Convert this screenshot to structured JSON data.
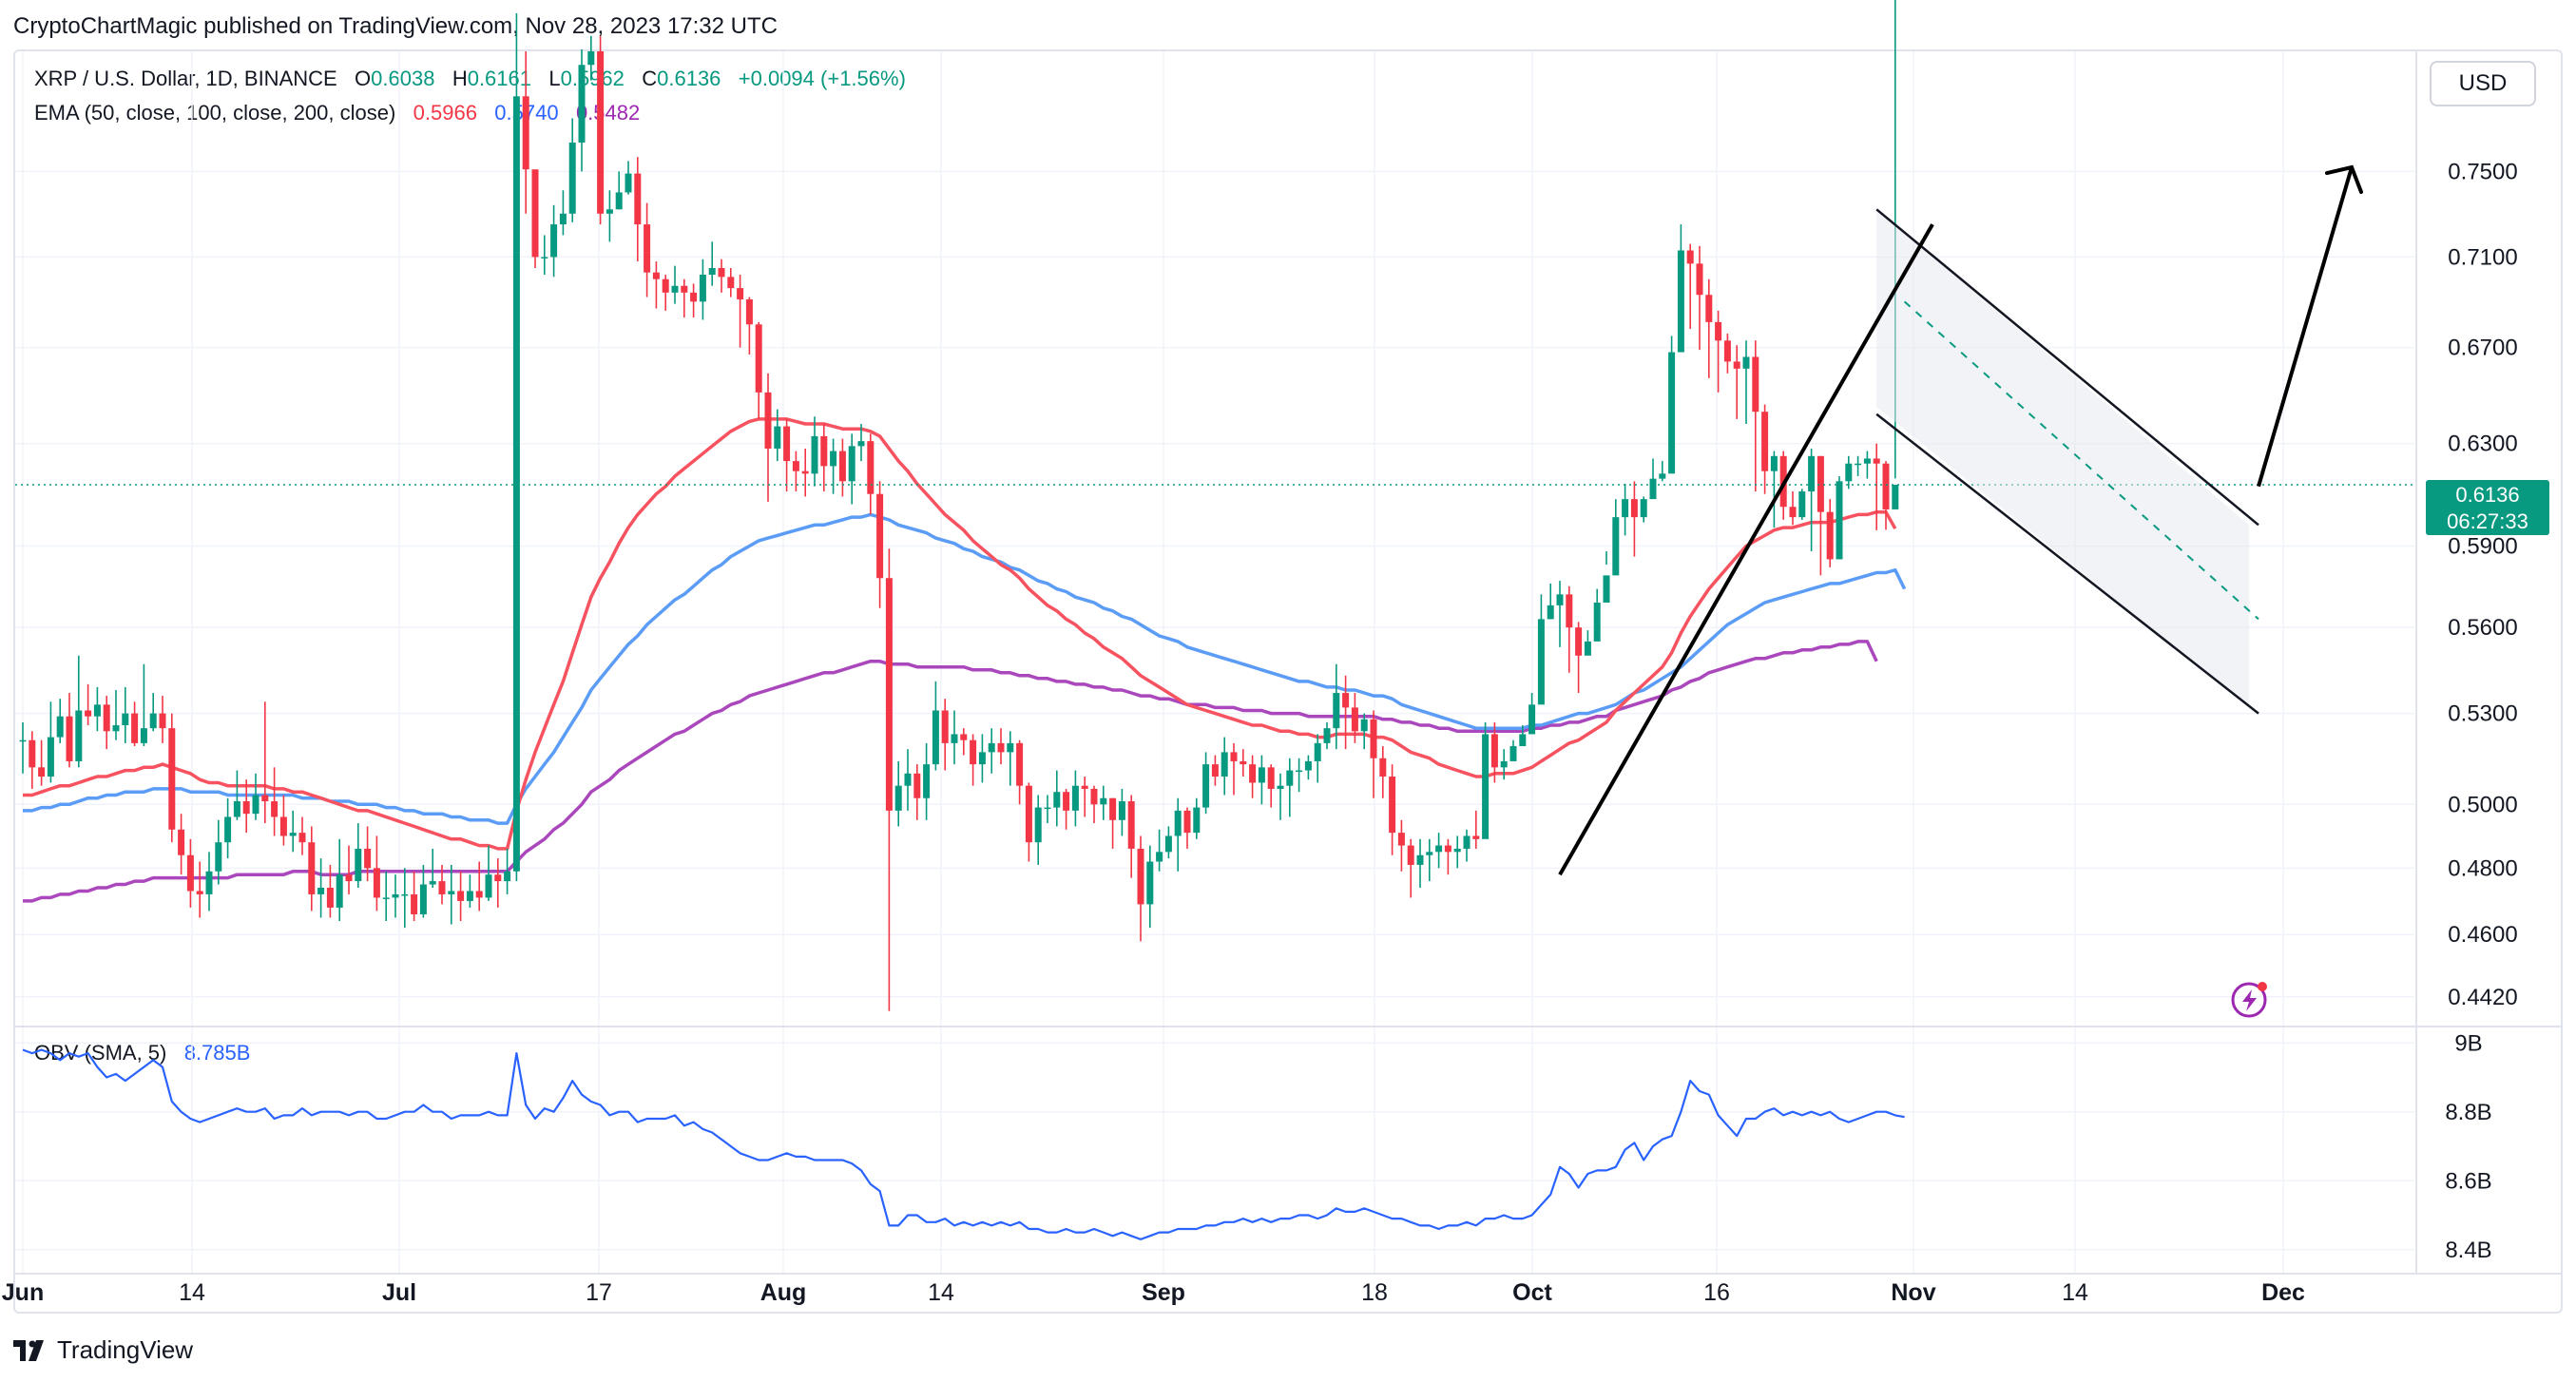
{
  "header": {
    "published": "CryptoChartMagic published on TradingView.com, Nov 28, 2023 17:32 UTC"
  },
  "toolbar": {
    "currency": "USD"
  },
  "legend": {
    "symbol": "XRP / U.S. Dollar, 1D, BINANCE",
    "o_label": "O",
    "o": "0.6038",
    "h_label": "H",
    "h": "0.6161",
    "l_label": "L",
    "l": "0.5962",
    "c_label": "C",
    "c": "0.6136",
    "change": "+0.0094 (+1.56%)",
    "ema_label": "EMA (50, close, 100, close, 200, close)",
    "ema50": "0.5966",
    "ema100": "0.5740",
    "ema200": "0.5482",
    "obv_label": "OBV (SMA, 5)",
    "obv_value": "8.785B"
  },
  "price_badge": {
    "price": "0.6136",
    "countdown": "06:27:33"
  },
  "brand": {
    "name": "TradingView"
  },
  "colors": {
    "up": "#089981",
    "down": "#f23645",
    "ema50": "#f7525f",
    "ema100": "#5b9cf6",
    "ema200": "#ab47bc",
    "obv": "#2962ff"
  },
  "chart_data": {
    "type": "candlestick",
    "title": "XRP / U.S. Dollar, 1D, BINANCE",
    "x_ticks": [
      "Jun",
      "14",
      "Jul",
      "17",
      "Aug",
      "14",
      "Sep",
      "18",
      "Oct",
      "16",
      "Nov",
      "14",
      "Dec"
    ],
    "price_axis": {
      "ticks": [
        "0.7500",
        "0.7100",
        "0.6700",
        "0.6300",
        "0.5900",
        "0.5600",
        "0.5300",
        "0.5000",
        "0.4800",
        "0.4600",
        "0.4420"
      ],
      "scale": "log",
      "range": [
        0.435,
        0.81
      ]
    },
    "obv_axis": {
      "ticks": [
        "9B",
        "8.8B",
        "8.6B",
        "8.4B"
      ],
      "range": [
        8.38,
        9.02
      ]
    },
    "dates": [
      "2023-06-01",
      "2023-11-28"
    ],
    "close": [
      0.521,
      0.512,
      0.509,
      0.522,
      0.529,
      0.514,
      0.531,
      0.529,
      0.533,
      0.524,
      0.526,
      0.53,
      0.52,
      0.525,
      0.53,
      0.525,
      0.492,
      0.484,
      0.473,
      0.472,
      0.479,
      0.488,
      0.496,
      0.501,
      0.497,
      0.503,
      0.501,
      0.496,
      0.49,
      0.491,
      0.488,
      0.472,
      0.474,
      0.468,
      0.478,
      0.476,
      0.486,
      0.48,
      0.471,
      0.471,
      0.472,
      0.472,
      0.466,
      0.475,
      0.476,
      0.472,
      0.473,
      0.47,
      0.473,
      0.471,
      0.478,
      0.476,
      0.479,
      0.787,
      0.751,
      0.71,
      0.71,
      0.725,
      0.73,
      0.764,
      0.803,
      0.81,
      0.73,
      0.732,
      0.74,
      0.749,
      0.725,
      0.703,
      0.7,
      0.694,
      0.697,
      0.694,
      0.69,
      0.702,
      0.705,
      0.701,
      0.696,
      0.691,
      0.68,
      0.651,
      0.628,
      0.637,
      0.623,
      0.619,
      0.618,
      0.633,
      0.621,
      0.627,
      0.615,
      0.629,
      0.631,
      0.61,
      0.578,
      0.498,
      0.506,
      0.51,
      0.502,
      0.513,
      0.531,
      0.52,
      0.523,
      0.521,
      0.513,
      0.517,
      0.52,
      0.517,
      0.52,
      0.506,
      0.488,
      0.499,
      0.499,
      0.504,
      0.498,
      0.506,
      0.505,
      0.5,
      0.502,
      0.495,
      0.501,
      0.486,
      0.469,
      0.482,
      0.485,
      0.49,
      0.498,
      0.491,
      0.499,
      0.513,
      0.509,
      0.517,
      0.514,
      0.513,
      0.507,
      0.512,
      0.505,
      0.506,
      0.511,
      0.511,
      0.514,
      0.52,
      0.525,
      0.537,
      0.532,
      0.524,
      0.528,
      0.515,
      0.509,
      0.491,
      0.487,
      0.481,
      0.484,
      0.485,
      0.487,
      0.485,
      0.486,
      0.49,
      0.489,
      0.523,
      0.512,
      0.514,
      0.519,
      0.523,
      0.533,
      0.563,
      0.568,
      0.572,
      0.56,
      0.55,
      0.555,
      0.569,
      0.579,
      0.601,
      0.608,
      0.601,
      0.608,
      0.616,
      0.618,
      0.668,
      0.713,
      0.707,
      0.693,
      0.681,
      0.673,
      0.664,
      0.661,
      0.666,
      0.643,
      0.619,
      0.625,
      0.605,
      0.601,
      0.611,
      0.625,
      0.603,
      0.585,
      0.615,
      0.622,
      0.622,
      0.624,
      0.622,
      0.604,
      0.6136
    ],
    "high": [
      0.527,
      0.524,
      0.521,
      0.534,
      0.535,
      0.537,
      0.55,
      0.54,
      0.539,
      0.536,
      0.538,
      0.539,
      0.534,
      0.547,
      0.537,
      0.536,
      0.53,
      0.497,
      0.489,
      0.482,
      0.485,
      0.495,
      0.502,
      0.511,
      0.508,
      0.51,
      0.534,
      0.512,
      0.503,
      0.498,
      0.496,
      0.493,
      0.483,
      0.481,
      0.489,
      0.487,
      0.494,
      0.493,
      0.49,
      0.479,
      0.478,
      0.48,
      0.479,
      0.481,
      0.486,
      0.481,
      0.481,
      0.479,
      0.478,
      0.482,
      0.487,
      0.483,
      0.486,
      0.83,
      0.81,
      0.75,
      0.72,
      0.734,
      0.741,
      0.776,
      0.811,
      0.818,
      0.818,
      0.741,
      0.75,
      0.755,
      0.757,
      0.735,
      0.708,
      0.702,
      0.706,
      0.7,
      0.698,
      0.709,
      0.717,
      0.709,
      0.705,
      0.702,
      0.692,
      0.681,
      0.659,
      0.644,
      0.64,
      0.627,
      0.628,
      0.641,
      0.638,
      0.632,
      0.632,
      0.634,
      0.638,
      0.634,
      0.615,
      0.589,
      0.514,
      0.518,
      0.513,
      0.52,
      0.541,
      0.535,
      0.531,
      0.525,
      0.523,
      0.523,
      0.525,
      0.525,
      0.524,
      0.521,
      0.507,
      0.503,
      0.503,
      0.511,
      0.505,
      0.511,
      0.509,
      0.506,
      0.506,
      0.502,
      0.505,
      0.503,
      0.49,
      0.487,
      0.492,
      0.493,
      0.502,
      0.499,
      0.502,
      0.517,
      0.516,
      0.522,
      0.52,
      0.518,
      0.516,
      0.516,
      0.513,
      0.51,
      0.515,
      0.515,
      0.516,
      0.523,
      0.527,
      0.547,
      0.543,
      0.537,
      0.53,
      0.531,
      0.519,
      0.513,
      0.495,
      0.489,
      0.489,
      0.489,
      0.491,
      0.489,
      0.49,
      0.492,
      0.498,
      0.527,
      0.527,
      0.518,
      0.521,
      0.526,
      0.537,
      0.572,
      0.576,
      0.577,
      0.575,
      0.562,
      0.559,
      0.574,
      0.583,
      0.608,
      0.614,
      0.615,
      0.609,
      0.624,
      0.623,
      0.675,
      0.725,
      0.716,
      0.715,
      0.7,
      0.686,
      0.676,
      0.671,
      0.673,
      0.673,
      0.646,
      0.627,
      0.627,
      0.611,
      0.612,
      0.628,
      0.625,
      0.608,
      0.617,
      0.625,
      0.625,
      0.627,
      0.63,
      0.623,
      0.6161
    ],
    "low": [
      0.51,
      0.505,
      0.506,
      0.507,
      0.52,
      0.512,
      0.512,
      0.526,
      0.524,
      0.518,
      0.521,
      0.52,
      0.519,
      0.519,
      0.524,
      0.52,
      0.488,
      0.478,
      0.468,
      0.465,
      0.467,
      0.475,
      0.483,
      0.495,
      0.491,
      0.495,
      0.494,
      0.49,
      0.487,
      0.485,
      0.484,
      0.467,
      0.465,
      0.465,
      0.464,
      0.472,
      0.474,
      0.476,
      0.467,
      0.464,
      0.465,
      0.462,
      0.464,
      0.465,
      0.474,
      0.469,
      0.463,
      0.464,
      0.468,
      0.467,
      0.47,
      0.468,
      0.472,
      0.476,
      0.73,
      0.705,
      0.702,
      0.701,
      0.72,
      0.726,
      0.75,
      0.795,
      0.725,
      0.717,
      0.732,
      0.739,
      0.708,
      0.692,
      0.687,
      0.686,
      0.689,
      0.683,
      0.683,
      0.682,
      0.697,
      0.694,
      0.692,
      0.67,
      0.667,
      0.64,
      0.607,
      0.623,
      0.611,
      0.611,
      0.609,
      0.613,
      0.611,
      0.61,
      0.609,
      0.606,
      0.623,
      0.602,
      0.567,
      0.438,
      0.493,
      0.498,
      0.495,
      0.495,
      0.511,
      0.511,
      0.513,
      0.516,
      0.506,
      0.507,
      0.51,
      0.513,
      0.506,
      0.5,
      0.482,
      0.481,
      0.494,
      0.493,
      0.492,
      0.493,
      0.496,
      0.494,
      0.495,
      0.486,
      0.49,
      0.477,
      0.458,
      0.462,
      0.479,
      0.483,
      0.479,
      0.486,
      0.489,
      0.497,
      0.506,
      0.503,
      0.503,
      0.509,
      0.502,
      0.5,
      0.499,
      0.495,
      0.496,
      0.504,
      0.508,
      0.507,
      0.518,
      0.518,
      0.518,
      0.52,
      0.518,
      0.502,
      0.502,
      0.484,
      0.479,
      0.471,
      0.474,
      0.476,
      0.48,
      0.478,
      0.48,
      0.482,
      0.486,
      0.508,
      0.507,
      0.508,
      0.518,
      0.523,
      0.529,
      0.559,
      0.563,
      0.553,
      0.544,
      0.537,
      0.555,
      0.569,
      0.588,
      0.6,
      0.594,
      0.586,
      0.599,
      0.61,
      0.615,
      0.663,
      0.688,
      0.678,
      0.669,
      0.657,
      0.651,
      0.659,
      0.64,
      0.638,
      0.611,
      0.61,
      0.597,
      0.6,
      0.598,
      0.6,
      0.588,
      0.579,
      0.582,
      0.603,
      0.612,
      0.617,
      0.616,
      0.596,
      0.5962
    ],
    "ema50": [
      0.503,
      0.503,
      0.504,
      0.505,
      0.506,
      0.506,
      0.507,
      0.508,
      0.509,
      0.509,
      0.51,
      0.511,
      0.511,
      0.512,
      0.512,
      0.513,
      0.512,
      0.511,
      0.51,
      0.508,
      0.507,
      0.507,
      0.506,
      0.506,
      0.506,
      0.506,
      0.506,
      0.505,
      0.505,
      0.504,
      0.504,
      0.503,
      0.502,
      0.501,
      0.5,
      0.499,
      0.498,
      0.498,
      0.497,
      0.496,
      0.495,
      0.494,
      0.493,
      0.492,
      0.491,
      0.49,
      0.489,
      0.489,
      0.488,
      0.487,
      0.487,
      0.486,
      0.486,
      0.498,
      0.508,
      0.517,
      0.525,
      0.533,
      0.541,
      0.551,
      0.561,
      0.571,
      0.578,
      0.584,
      0.591,
      0.597,
      0.602,
      0.606,
      0.61,
      0.613,
      0.617,
      0.62,
      0.623,
      0.626,
      0.629,
      0.632,
      0.635,
      0.637,
      0.639,
      0.64,
      0.64,
      0.64,
      0.64,
      0.639,
      0.638,
      0.638,
      0.638,
      0.637,
      0.636,
      0.636,
      0.636,
      0.635,
      0.633,
      0.628,
      0.623,
      0.619,
      0.614,
      0.61,
      0.606,
      0.602,
      0.599,
      0.596,
      0.592,
      0.589,
      0.586,
      0.583,
      0.581,
      0.578,
      0.574,
      0.571,
      0.568,
      0.566,
      0.563,
      0.561,
      0.558,
      0.556,
      0.553,
      0.551,
      0.549,
      0.546,
      0.543,
      0.541,
      0.539,
      0.537,
      0.535,
      0.533,
      0.532,
      0.531,
      0.53,
      0.529,
      0.528,
      0.527,
      0.526,
      0.526,
      0.525,
      0.524,
      0.524,
      0.523,
      0.523,
      0.522,
      0.522,
      0.523,
      0.523,
      0.523,
      0.523,
      0.522,
      0.522,
      0.521,
      0.519,
      0.517,
      0.516,
      0.515,
      0.513,
      0.512,
      0.511,
      0.51,
      0.509,
      0.509,
      0.51,
      0.51,
      0.51,
      0.511,
      0.512,
      0.514,
      0.516,
      0.518,
      0.52,
      0.521,
      0.523,
      0.525,
      0.527,
      0.531,
      0.534,
      0.537,
      0.54,
      0.543,
      0.546,
      0.551,
      0.558,
      0.564,
      0.569,
      0.574,
      0.578,
      0.582,
      0.586,
      0.59,
      0.592,
      0.594,
      0.596,
      0.597,
      0.597,
      0.598,
      0.599,
      0.599,
      0.599,
      0.6,
      0.601,
      0.602,
      0.602,
      0.603,
      0.603,
      0.5966
    ],
    "ema100": [
      0.498,
      0.498,
      0.499,
      0.499,
      0.5,
      0.5,
      0.501,
      0.502,
      0.502,
      0.503,
      0.503,
      0.504,
      0.504,
      0.504,
      0.505,
      0.505,
      0.505,
      0.505,
      0.504,
      0.504,
      0.504,
      0.504,
      0.503,
      0.503,
      0.503,
      0.503,
      0.503,
      0.503,
      0.503,
      0.503,
      0.502,
      0.502,
      0.502,
      0.501,
      0.501,
      0.501,
      0.5,
      0.5,
      0.5,
      0.499,
      0.499,
      0.498,
      0.498,
      0.497,
      0.497,
      0.497,
      0.496,
      0.496,
      0.495,
      0.495,
      0.495,
      0.494,
      0.494,
      0.5,
      0.505,
      0.509,
      0.513,
      0.517,
      0.522,
      0.527,
      0.532,
      0.538,
      0.542,
      0.546,
      0.55,
      0.554,
      0.557,
      0.561,
      0.564,
      0.567,
      0.57,
      0.572,
      0.575,
      0.578,
      0.581,
      0.583,
      0.586,
      0.588,
      0.59,
      0.592,
      0.593,
      0.594,
      0.595,
      0.596,
      0.597,
      0.598,
      0.598,
      0.599,
      0.6,
      0.601,
      0.601,
      0.602,
      0.601,
      0.6,
      0.598,
      0.597,
      0.596,
      0.595,
      0.593,
      0.592,
      0.591,
      0.589,
      0.588,
      0.586,
      0.585,
      0.584,
      0.582,
      0.581,
      0.579,
      0.577,
      0.576,
      0.574,
      0.573,
      0.571,
      0.57,
      0.569,
      0.567,
      0.566,
      0.564,
      0.563,
      0.561,
      0.559,
      0.557,
      0.556,
      0.555,
      0.553,
      0.552,
      0.551,
      0.55,
      0.549,
      0.548,
      0.547,
      0.546,
      0.545,
      0.544,
      0.543,
      0.542,
      0.541,
      0.541,
      0.54,
      0.539,
      0.539,
      0.538,
      0.538,
      0.537,
      0.536,
      0.536,
      0.535,
      0.533,
      0.532,
      0.531,
      0.53,
      0.529,
      0.528,
      0.527,
      0.526,
      0.525,
      0.525,
      0.525,
      0.525,
      0.525,
      0.525,
      0.526,
      0.526,
      0.527,
      0.528,
      0.529,
      0.53,
      0.53,
      0.531,
      0.532,
      0.533,
      0.535,
      0.537,
      0.538,
      0.54,
      0.542,
      0.544,
      0.546,
      0.549,
      0.552,
      0.555,
      0.558,
      0.561,
      0.563,
      0.565,
      0.567,
      0.569,
      0.57,
      0.571,
      0.572,
      0.573,
      0.574,
      0.575,
      0.576,
      0.576,
      0.577,
      0.578,
      0.579,
      0.58,
      0.58,
      0.581,
      0.574
    ],
    "ema200": [
      0.47,
      0.47,
      0.471,
      0.471,
      0.472,
      0.472,
      0.473,
      0.473,
      0.474,
      0.474,
      0.475,
      0.475,
      0.476,
      0.476,
      0.477,
      0.477,
      0.477,
      0.477,
      0.477,
      0.477,
      0.477,
      0.477,
      0.477,
      0.478,
      0.478,
      0.478,
      0.478,
      0.478,
      0.478,
      0.479,
      0.479,
      0.479,
      0.478,
      0.478,
      0.478,
      0.478,
      0.479,
      0.479,
      0.479,
      0.479,
      0.479,
      0.479,
      0.479,
      0.479,
      0.479,
      0.479,
      0.479,
      0.479,
      0.479,
      0.479,
      0.479,
      0.479,
      0.479,
      0.482,
      0.485,
      0.487,
      0.489,
      0.492,
      0.494,
      0.497,
      0.5,
      0.504,
      0.506,
      0.508,
      0.511,
      0.513,
      0.515,
      0.517,
      0.519,
      0.521,
      0.523,
      0.524,
      0.526,
      0.528,
      0.53,
      0.531,
      0.533,
      0.534,
      0.536,
      0.537,
      0.538,
      0.539,
      0.54,
      0.541,
      0.542,
      0.543,
      0.544,
      0.544,
      0.545,
      0.546,
      0.547,
      0.548,
      0.548,
      0.547,
      0.547,
      0.547,
      0.546,
      0.546,
      0.546,
      0.546,
      0.546,
      0.546,
      0.545,
      0.545,
      0.545,
      0.544,
      0.544,
      0.543,
      0.543,
      0.542,
      0.542,
      0.541,
      0.541,
      0.54,
      0.54,
      0.539,
      0.539,
      0.538,
      0.538,
      0.537,
      0.536,
      0.536,
      0.535,
      0.535,
      0.534,
      0.533,
      0.533,
      0.533,
      0.532,
      0.532,
      0.532,
      0.531,
      0.531,
      0.531,
      0.53,
      0.53,
      0.53,
      0.53,
      0.529,
      0.529,
      0.529,
      0.529,
      0.529,
      0.529,
      0.529,
      0.529,
      0.528,
      0.528,
      0.527,
      0.527,
      0.526,
      0.526,
      0.525,
      0.525,
      0.524,
      0.524,
      0.524,
      0.524,
      0.524,
      0.524,
      0.524,
      0.524,
      0.525,
      0.525,
      0.526,
      0.526,
      0.527,
      0.527,
      0.528,
      0.529,
      0.529,
      0.531,
      0.532,
      0.533,
      0.534,
      0.535,
      0.536,
      0.538,
      0.539,
      0.541,
      0.542,
      0.544,
      0.545,
      0.546,
      0.547,
      0.548,
      0.549,
      0.549,
      0.55,
      0.551,
      0.551,
      0.552,
      0.552,
      0.553,
      0.553,
      0.554,
      0.554,
      0.555,
      0.555,
      0.548
    ],
    "obv": [
      8.98,
      8.97,
      8.98,
      8.97,
      8.95,
      8.97,
      8.96,
      8.97,
      8.93,
      8.9,
      8.91,
      8.89,
      8.91,
      8.93,
      8.95,
      8.93,
      8.83,
      8.8,
      8.78,
      8.77,
      8.78,
      8.79,
      8.8,
      8.81,
      8.8,
      8.8,
      8.81,
      8.78,
      8.79,
      8.79,
      8.81,
      8.79,
      8.8,
      8.8,
      8.8,
      8.79,
      8.8,
      8.8,
      8.78,
      8.78,
      8.79,
      8.8,
      8.8,
      8.82,
      8.8,
      8.8,
      8.78,
      8.79,
      8.79,
      8.79,
      8.8,
      8.79,
      8.79,
      8.97,
      8.82,
      8.78,
      8.81,
      8.8,
      8.84,
      8.89,
      8.85,
      8.83,
      8.82,
      8.79,
      8.8,
      8.8,
      8.77,
      8.78,
      8.78,
      8.78,
      8.79,
      8.76,
      8.77,
      8.75,
      8.74,
      8.72,
      8.7,
      8.68,
      8.67,
      8.66,
      8.66,
      8.67,
      8.68,
      8.67,
      8.67,
      8.66,
      8.66,
      8.66,
      8.66,
      8.65,
      8.63,
      8.59,
      8.57,
      8.47,
      8.47,
      8.5,
      8.5,
      8.48,
      8.48,
      8.49,
      8.47,
      8.48,
      8.47,
      8.48,
      8.47,
      8.48,
      8.47,
      8.48,
      8.46,
      8.46,
      8.45,
      8.45,
      8.46,
      8.45,
      8.45,
      8.46,
      8.45,
      8.44,
      8.45,
      8.44,
      8.43,
      8.44,
      8.45,
      8.45,
      8.46,
      8.46,
      8.46,
      8.47,
      8.47,
      8.48,
      8.48,
      8.49,
      8.48,
      8.49,
      8.48,
      8.49,
      8.49,
      8.5,
      8.5,
      8.49,
      8.5,
      8.52,
      8.51,
      8.51,
      8.52,
      8.51,
      8.5,
      8.49,
      8.49,
      8.48,
      8.47,
      8.47,
      8.46,
      8.47,
      8.47,
      8.48,
      8.47,
      8.49,
      8.49,
      8.5,
      8.49,
      8.49,
      8.5,
      8.53,
      8.56,
      8.64,
      8.62,
      8.58,
      8.62,
      8.63,
      8.63,
      8.64,
      8.69,
      8.71,
      8.66,
      8.7,
      8.72,
      8.73,
      8.8,
      8.89,
      8.86,
      8.85,
      8.79,
      8.76,
      8.73,
      8.78,
      8.78,
      8.8,
      8.81,
      8.79,
      8.8,
      8.79,
      8.8,
      8.79,
      8.8,
      8.78,
      8.77,
      8.78,
      8.79,
      8.8,
      8.8,
      8.79,
      8.785
    ]
  }
}
